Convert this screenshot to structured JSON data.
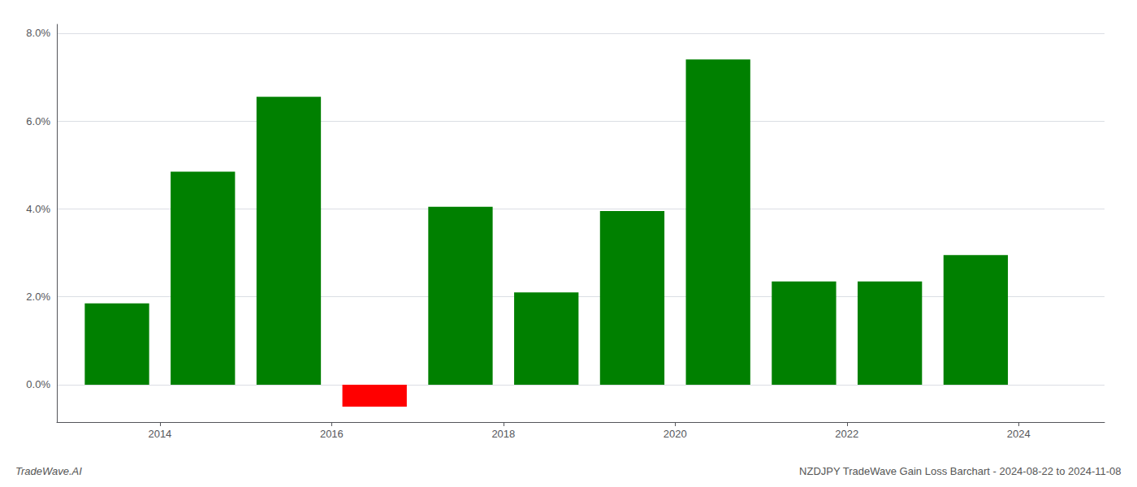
{
  "chart_data": {
    "type": "bar",
    "title": "NZDJPY TradeWave Gain Loss Barchart - 2024-08-22 to 2024-11-08",
    "annotations": [
      "TradeWave.AI"
    ],
    "x": [
      2013,
      2014,
      2015,
      2016,
      2017,
      2018,
      2019,
      2020,
      2021,
      2022,
      2023
    ],
    "values": [
      1.85,
      4.85,
      6.55,
      -0.5,
      4.05,
      2.1,
      3.95,
      7.4,
      2.35,
      2.35,
      2.95
    ],
    "colors": [
      "#008000",
      "#008000",
      "#008000",
      "#ff0000",
      "#008000",
      "#008000",
      "#008000",
      "#008000",
      "#008000",
      "#008000",
      "#008000"
    ],
    "xlim": [
      2012.3,
      2024.5
    ],
    "xticks": [
      {
        "value": 2013.5,
        "label": "2014"
      },
      {
        "value": 2015.5,
        "label": "2016"
      },
      {
        "value": 2017.5,
        "label": "2018"
      },
      {
        "value": 2019.5,
        "label": "2020"
      },
      {
        "value": 2021.5,
        "label": "2022"
      },
      {
        "value": 2023.5,
        "label": "2024"
      }
    ],
    "ylim": [
      -0.85,
      8.2
    ],
    "yticks": [
      {
        "value": 0,
        "label": "0.0%"
      },
      {
        "value": 2,
        "label": "2.0%"
      },
      {
        "value": 4,
        "label": "4.0%"
      },
      {
        "value": 6,
        "label": "6.0%"
      },
      {
        "value": 8,
        "label": "8.0%"
      }
    ],
    "grid": true
  }
}
